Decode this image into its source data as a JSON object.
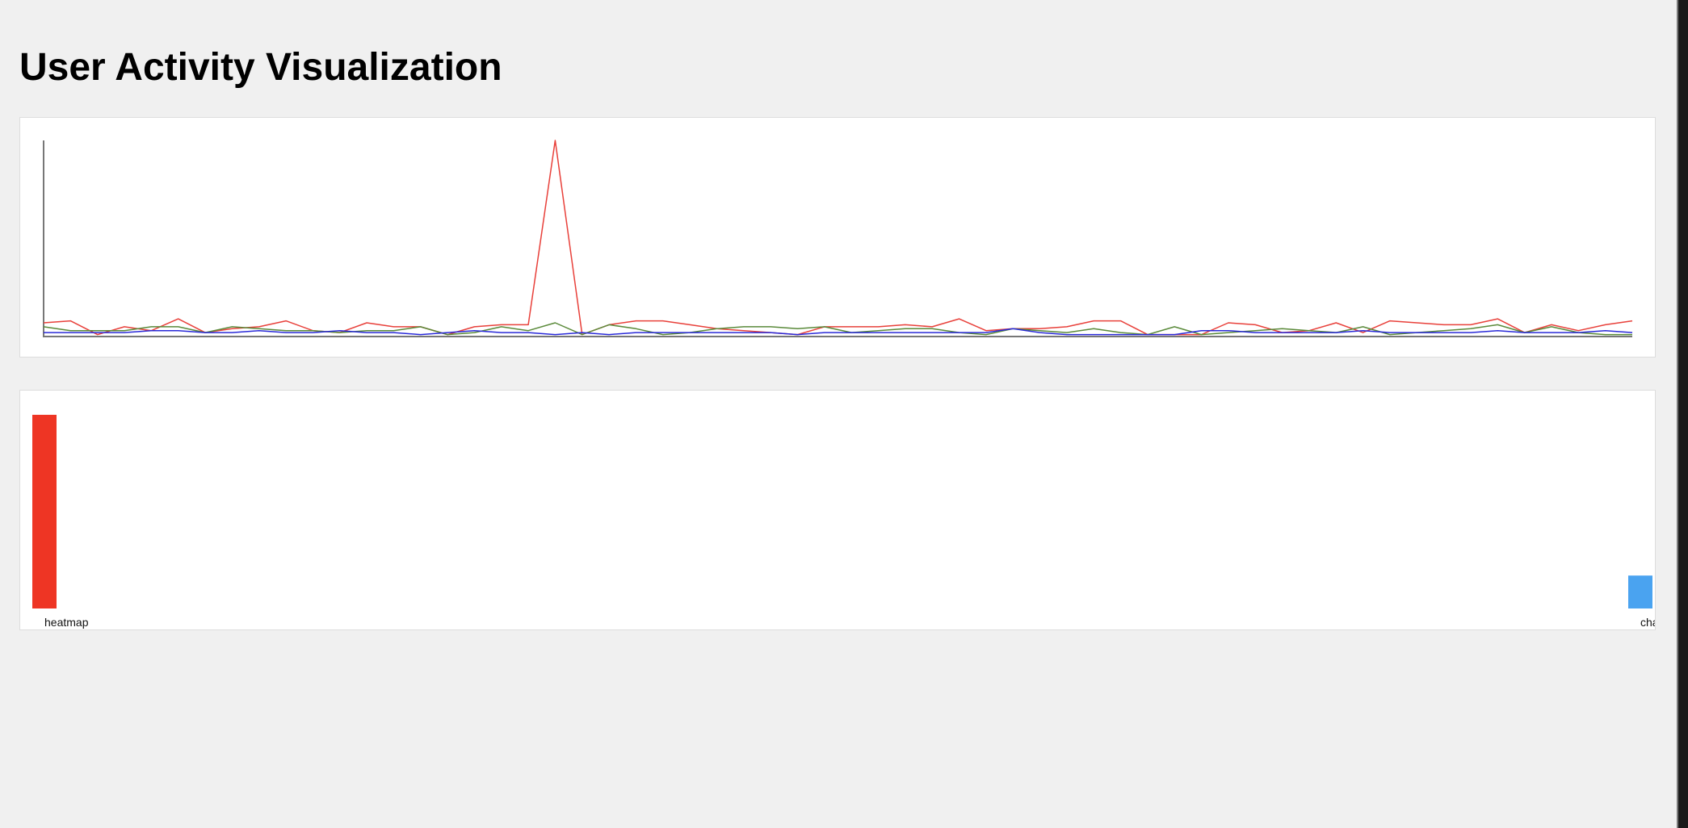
{
  "page": {
    "title": "User Activity Visualization"
  },
  "colors": {
    "page_bg": "#f0f0f0",
    "panel_bg": "#ffffff",
    "axis": "#777777"
  },
  "chart_data": [
    {
      "type": "line",
      "title": "",
      "xlabel": "",
      "ylabel": "",
      "grid": false,
      "ylim": [
        0,
        100
      ],
      "x": [
        0,
        1,
        2,
        3,
        4,
        5,
        6,
        7,
        8,
        9,
        10,
        11,
        12,
        13,
        14,
        15,
        16,
        17,
        18,
        19,
        20,
        21,
        22,
        23,
        24,
        25,
        26,
        27,
        28,
        29,
        30,
        31,
        32,
        33,
        34,
        35,
        36,
        37,
        38,
        39,
        40,
        41,
        42,
        43,
        44,
        45,
        46,
        47,
        48,
        49,
        50,
        51,
        52,
        53,
        54,
        55,
        56,
        57,
        58,
        59
      ],
      "series": [
        {
          "color": "#e8403a",
          "values": [
            7,
            8,
            1,
            5,
            3,
            9,
            2,
            4,
            5,
            8,
            3,
            2,
            7,
            5,
            5,
            1,
            5,
            6,
            6,
            100,
            1,
            6,
            8,
            8,
            6,
            4,
            3,
            2,
            1,
            5,
            5,
            5,
            6,
            5,
            9,
            3,
            4,
            4,
            5,
            8,
            8,
            1,
            1,
            1,
            7,
            6,
            2,
            3,
            7,
            2,
            8,
            7,
            6,
            6,
            9,
            2,
            6,
            3,
            6,
            8
          ],
          "name": ""
        },
        {
          "color": "#5a8a3a",
          "values": [
            5,
            3,
            3,
            3,
            5,
            5,
            2,
            5,
            4,
            3,
            3,
            2,
            3,
            3,
            5,
            1,
            2,
            5,
            3,
            7,
            1,
            6,
            4,
            1,
            2,
            4,
            5,
            5,
            4,
            5,
            2,
            3,
            4,
            4,
            2,
            1,
            4,
            3,
            2,
            4,
            2,
            1,
            5,
            1,
            2,
            3,
            4,
            3,
            2,
            5,
            1,
            2,
            3,
            4,
            6,
            2,
            5,
            2,
            1,
            1
          ],
          "name": ""
        },
        {
          "color": "#2a2ad8",
          "values": [
            2,
            2,
            2,
            2,
            3,
            3,
            2,
            2,
            3,
            2,
            2,
            3,
            2,
            2,
            1,
            2,
            3,
            2,
            2,
            1,
            2,
            1,
            2,
            2,
            2,
            2,
            2,
            2,
            1,
            2,
            2,
            2,
            2,
            2,
            2,
            2,
            4,
            2,
            1,
            1,
            1,
            1,
            1,
            3,
            3,
            2,
            2,
            2,
            2,
            3,
            2,
            2,
            2,
            2,
            3,
            2,
            2,
            2,
            3,
            2
          ],
          "name": ""
        }
      ]
    },
    {
      "type": "bar",
      "title": "",
      "xlabel": "",
      "ylabel": "",
      "grid": false,
      "categories": [
        "heatmap",
        "char"
      ],
      "values": [
        100,
        17
      ],
      "colors": [
        "#ee3524",
        "#4aa3f0"
      ]
    }
  ]
}
